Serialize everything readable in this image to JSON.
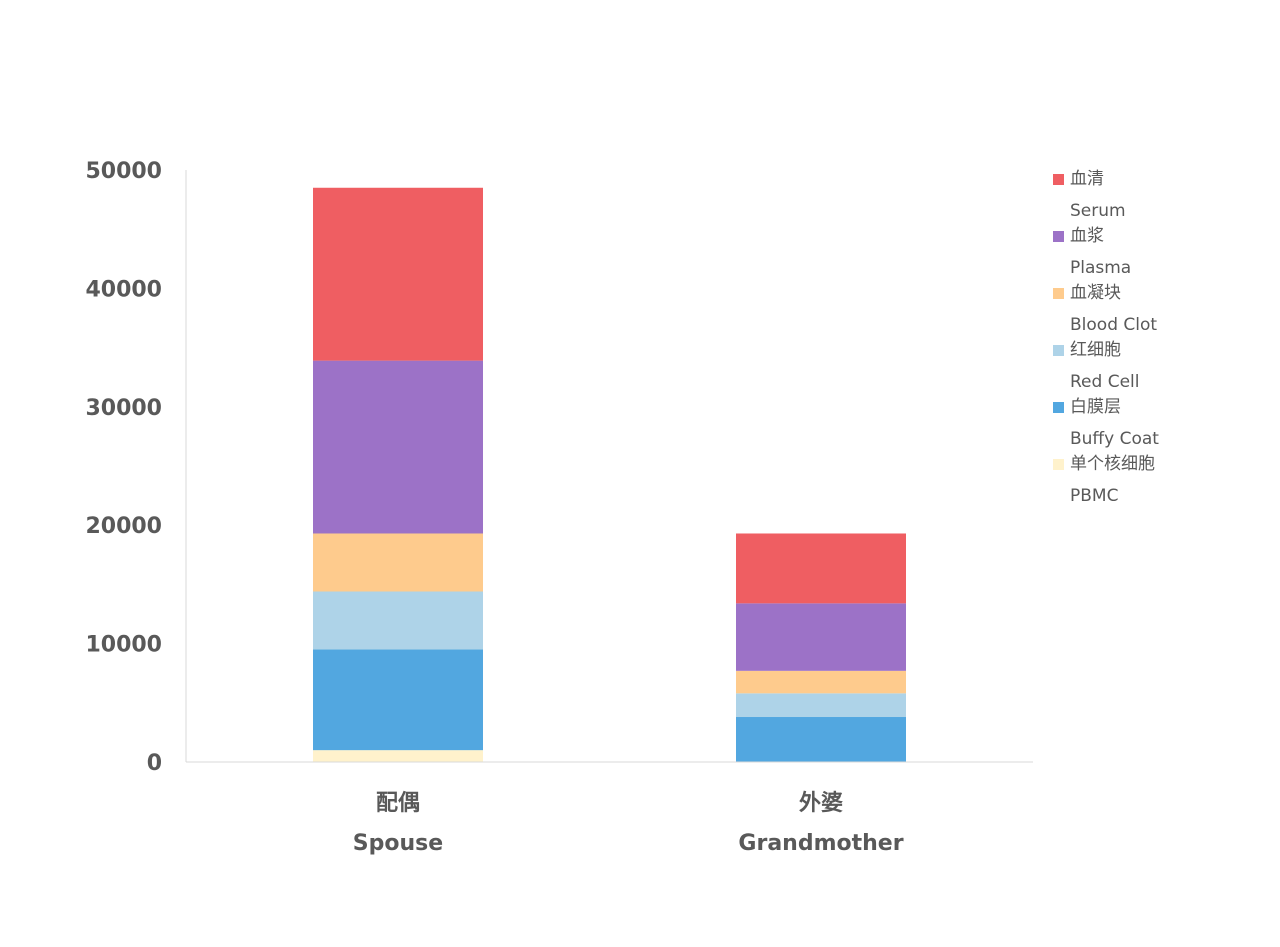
{
  "chart_data": {
    "type": "bar",
    "stacked": true,
    "categories": [
      {
        "zh": "配偶",
        "en": "Spouse"
      },
      {
        "zh": "外婆",
        "en": "Grandmother"
      }
    ],
    "series": [
      {
        "name": "单个核细胞\nPBMC",
        "name_zh": "单个核细胞",
        "name_en": "PBMC",
        "color": "#FFF2CC",
        "values": [
          1000,
          0
        ]
      },
      {
        "name": "白膜层\nBuffy Coat",
        "name_zh": "白膜层",
        "name_en": "Buffy Coat",
        "color": "#52A7E0",
        "values": [
          8500,
          3800
        ]
      },
      {
        "name": "红细胞\nRed Cell",
        "name_zh": "红细胞",
        "name_en": "Red Cell",
        "color": "#AED3E8",
        "values": [
          4900,
          2000
        ]
      },
      {
        "name": "血凝块\nBlood Clot",
        "name_zh": "血凝块",
        "name_en": "Blood Clot",
        "color": "#FECB8D",
        "values": [
          4900,
          1900
        ]
      },
      {
        "name": "血浆\nPlasma",
        "name_zh": "血浆",
        "name_en": "Plasma",
        "color": "#9C72C7",
        "values": [
          14600,
          5700
        ]
      },
      {
        "name": "血清\nSerum",
        "name_zh": "血清",
        "name_en": "Serum",
        "color": "#EF5E62",
        "values": [
          14600,
          5900
        ]
      }
    ],
    "ylim": [
      0,
      50000
    ],
    "yticks": [
      "0",
      "10000",
      "20000",
      "30000",
      "40000",
      "50000"
    ],
    "legend_order": [
      "血清",
      "血浆",
      "血凝块",
      "红细胞",
      "白膜层",
      "单个核细胞"
    ],
    "legend_position": "right",
    "grid": false,
    "title": "",
    "xlabel": "",
    "ylabel": ""
  }
}
